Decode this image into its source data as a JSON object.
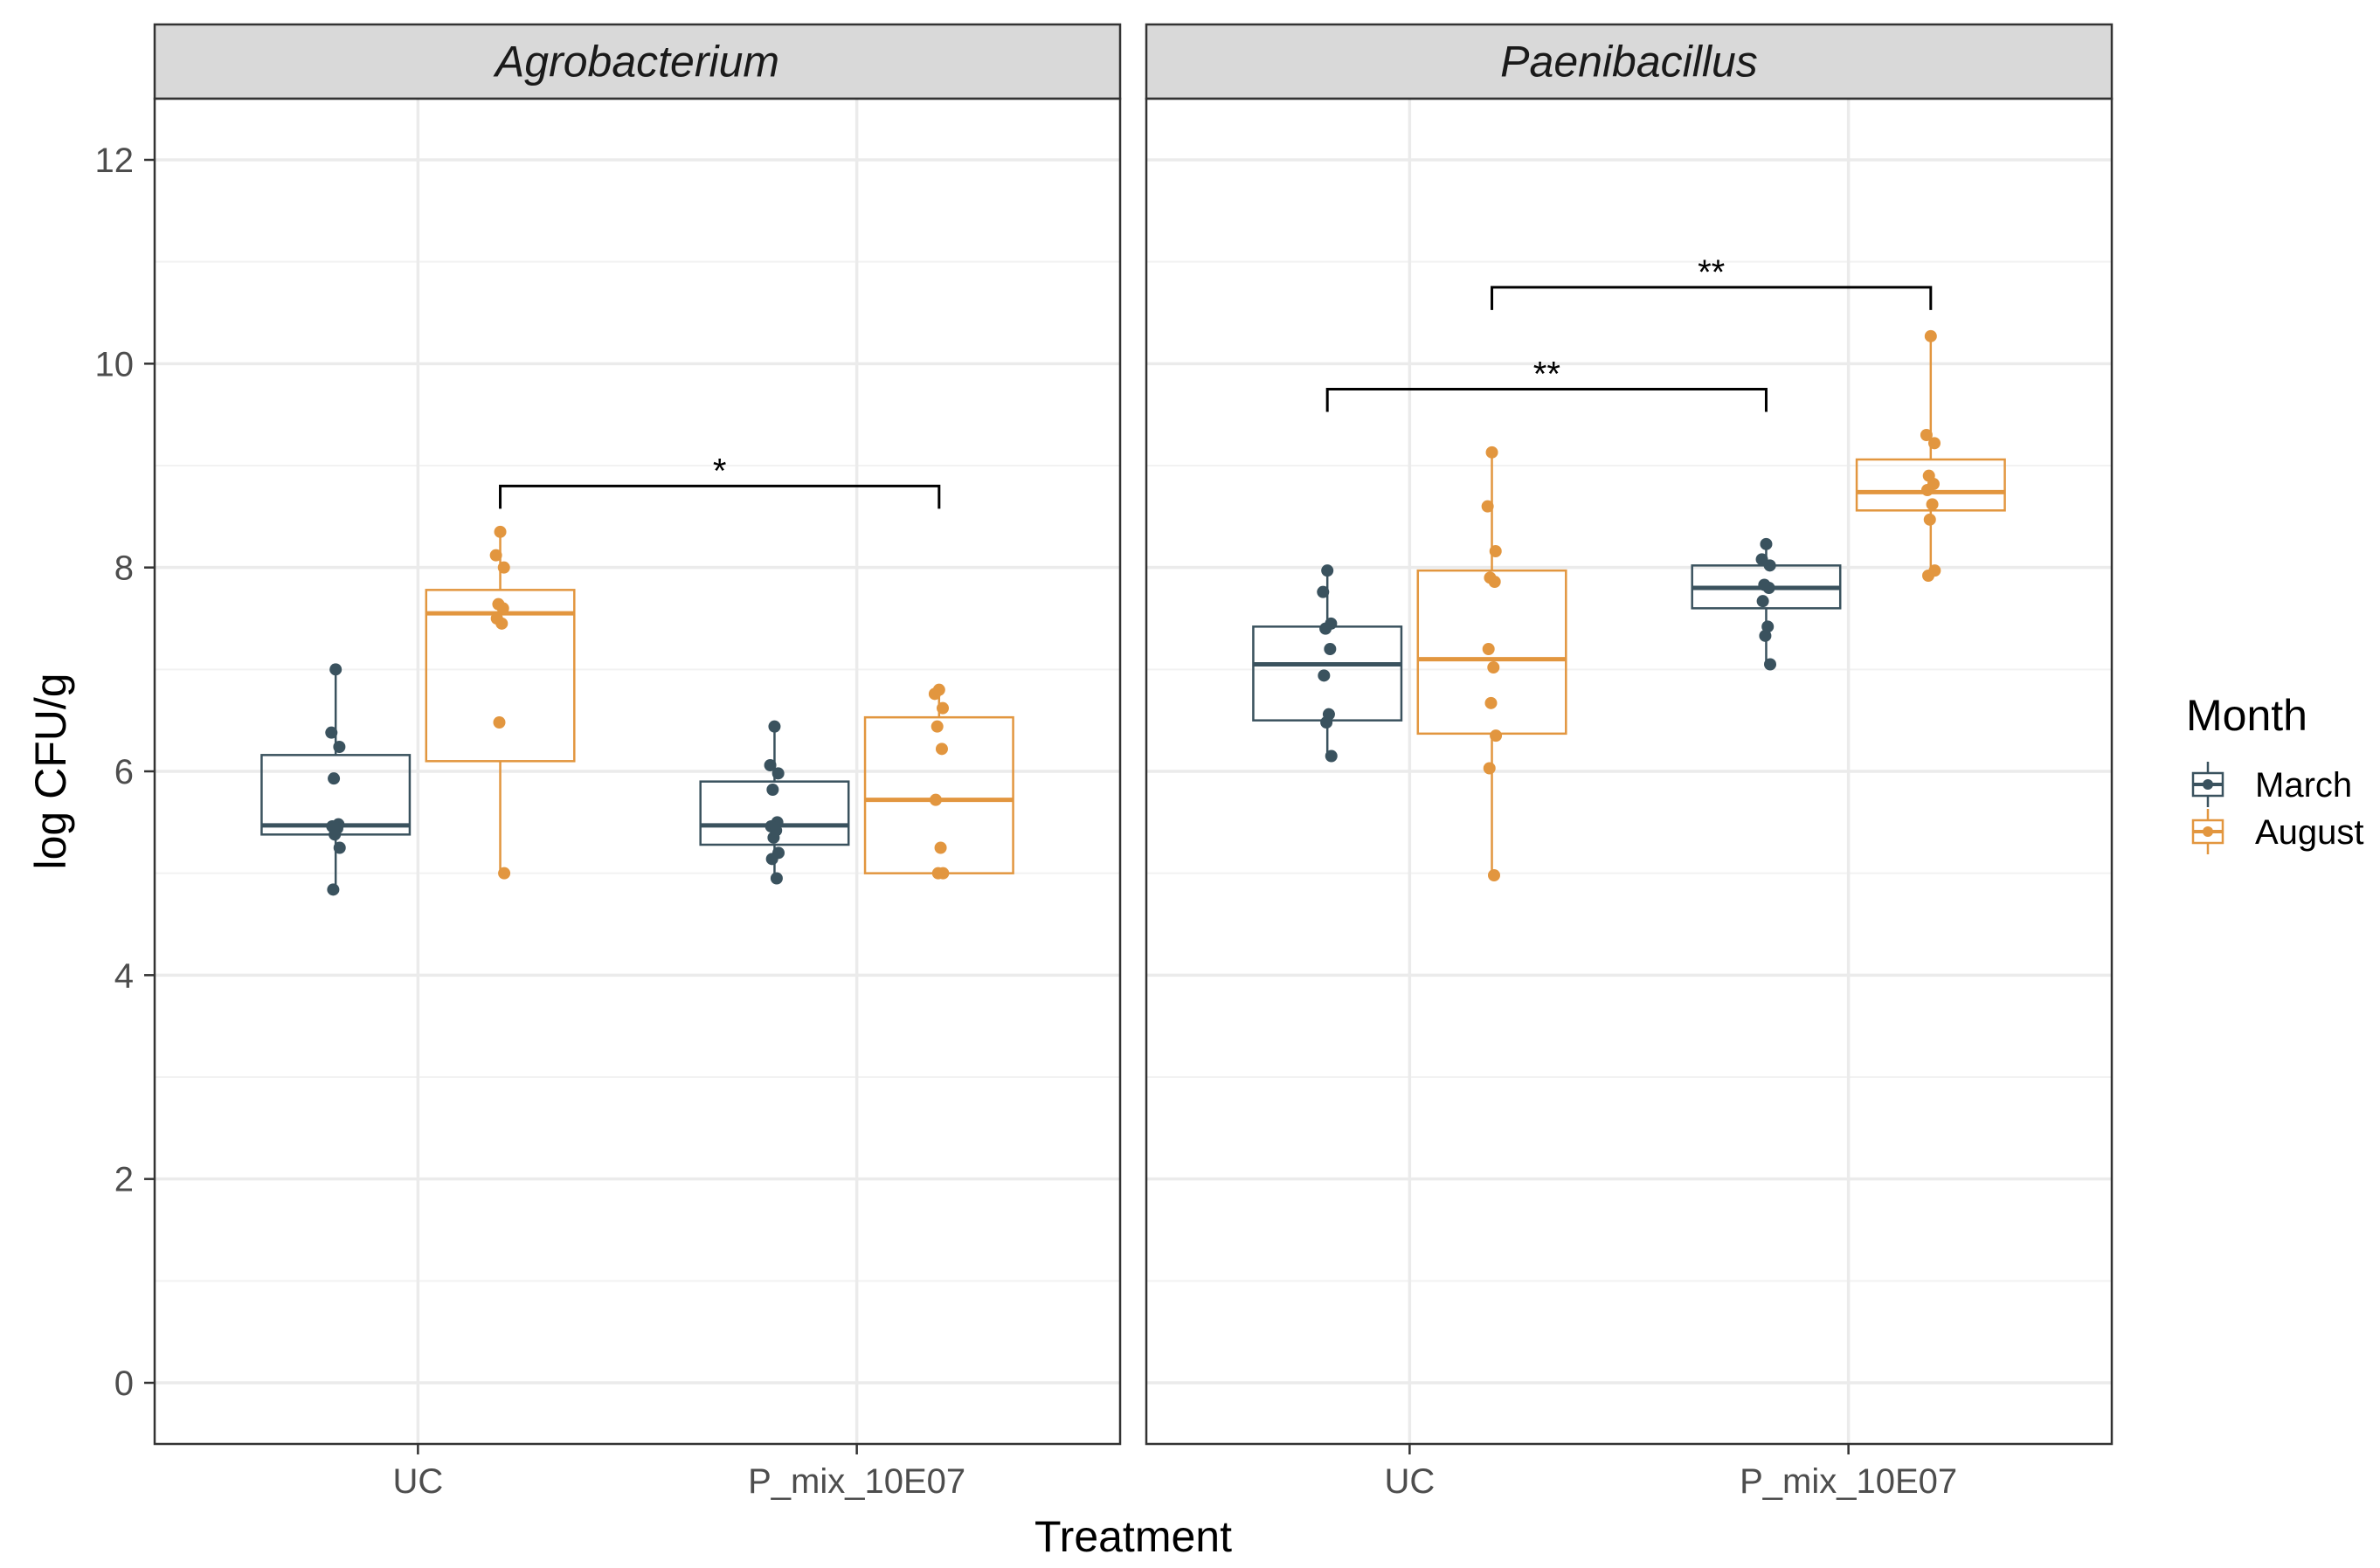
{
  "chart_data": {
    "type": "box",
    "title": "",
    "xlabel": "Treatment",
    "ylabel": "log CFU/g",
    "ylim": [
      -0.6,
      12.6
    ],
    "yticks": [
      0,
      2,
      4,
      6,
      8,
      10,
      12
    ],
    "ytick_labels": [
      "0",
      "2",
      "4",
      "6",
      "8",
      "10",
      "12"
    ],
    "categories": [
      "UC",
      "P_mix_10E07"
    ],
    "legend": {
      "title": "Month",
      "position": "right",
      "items": [
        {
          "label": "March",
          "color": "#3a525e"
        },
        {
          "label": "August",
          "color": "#e2963f"
        }
      ]
    },
    "panels": [
      {
        "name": "Agrobacterium",
        "groups": [
          {
            "category": "UC",
            "series": "March",
            "q1": 5.38,
            "median": 5.47,
            "q3": 6.16,
            "whisker_low": 4.84,
            "whisker_high": 7.0,
            "points": [
              7.0,
              6.38,
              6.24,
              5.93,
              5.48,
              5.46,
              5.44,
              5.38,
              5.25,
              4.84
            ]
          },
          {
            "category": "UC",
            "series": "August",
            "q1": 6.1,
            "median": 7.55,
            "q3": 7.78,
            "whisker_low": 5.0,
            "whisker_high": 8.35,
            "points": [
              8.35,
              8.12,
              8.0,
              7.64,
              7.6,
              7.5,
              7.45,
              6.48,
              5.0
            ]
          },
          {
            "category": "P_mix_10E07",
            "series": "March",
            "q1": 5.28,
            "median": 5.47,
            "q3": 5.9,
            "whisker_low": 4.95,
            "whisker_high": 6.44,
            "points": [
              6.44,
              6.06,
              5.98,
              5.82,
              5.5,
              5.46,
              5.42,
              5.35,
              5.2,
              5.14,
              4.95
            ]
          },
          {
            "category": "P_mix_10E07",
            "series": "August",
            "q1": 5.0,
            "median": 5.72,
            "q3": 6.53,
            "whisker_low": 5.0,
            "whisker_high": 6.8,
            "points": [
              6.8,
              6.76,
              6.62,
              6.44,
              6.22,
              5.72,
              5.25,
              5.0,
              5.0
            ]
          }
        ],
        "brackets": [
          {
            "label": "*",
            "from": "UC August",
            "to": "P_mix_10E07 August",
            "y": 8.8
          }
        ]
      },
      {
        "name": "Paenibacillus",
        "groups": [
          {
            "category": "UC",
            "series": "March",
            "q1": 6.5,
            "median": 7.05,
            "q3": 7.42,
            "whisker_low": 6.15,
            "whisker_high": 7.97,
            "points": [
              7.97,
              7.76,
              7.45,
              7.4,
              7.2,
              6.94,
              6.56,
              6.48,
              6.15
            ]
          },
          {
            "category": "UC",
            "series": "August",
            "q1": 6.37,
            "median": 7.1,
            "q3": 7.97,
            "whisker_low": 4.98,
            "whisker_high": 9.13,
            "points": [
              9.13,
              8.6,
              8.16,
              7.9,
              7.86,
              7.2,
              7.02,
              6.67,
              6.35,
              6.03,
              4.98
            ]
          },
          {
            "category": "P_mix_10E07",
            "series": "March",
            "q1": 7.6,
            "median": 7.8,
            "q3": 8.02,
            "whisker_low": 7.05,
            "whisker_high": 8.23,
            "points": [
              8.23,
              8.08,
              8.02,
              7.83,
              7.8,
              7.67,
              7.42,
              7.33,
              7.05
            ]
          },
          {
            "category": "P_mix_10E07",
            "series": "August",
            "q1": 8.56,
            "median": 8.74,
            "q3": 9.06,
            "whisker_low": 7.92,
            "whisker_high": 10.27,
            "points": [
              10.27,
              9.3,
              9.22,
              8.9,
              8.82,
              8.76,
              8.62,
              8.47,
              7.97,
              7.92
            ]
          }
        ],
        "brackets": [
          {
            "label": "**",
            "from": "UC March",
            "to": "P_mix_10E07 March",
            "y": 9.75
          },
          {
            "label": "**",
            "from": "UC August",
            "to": "P_mix_10E07 August",
            "y": 10.75
          }
        ]
      }
    ]
  }
}
